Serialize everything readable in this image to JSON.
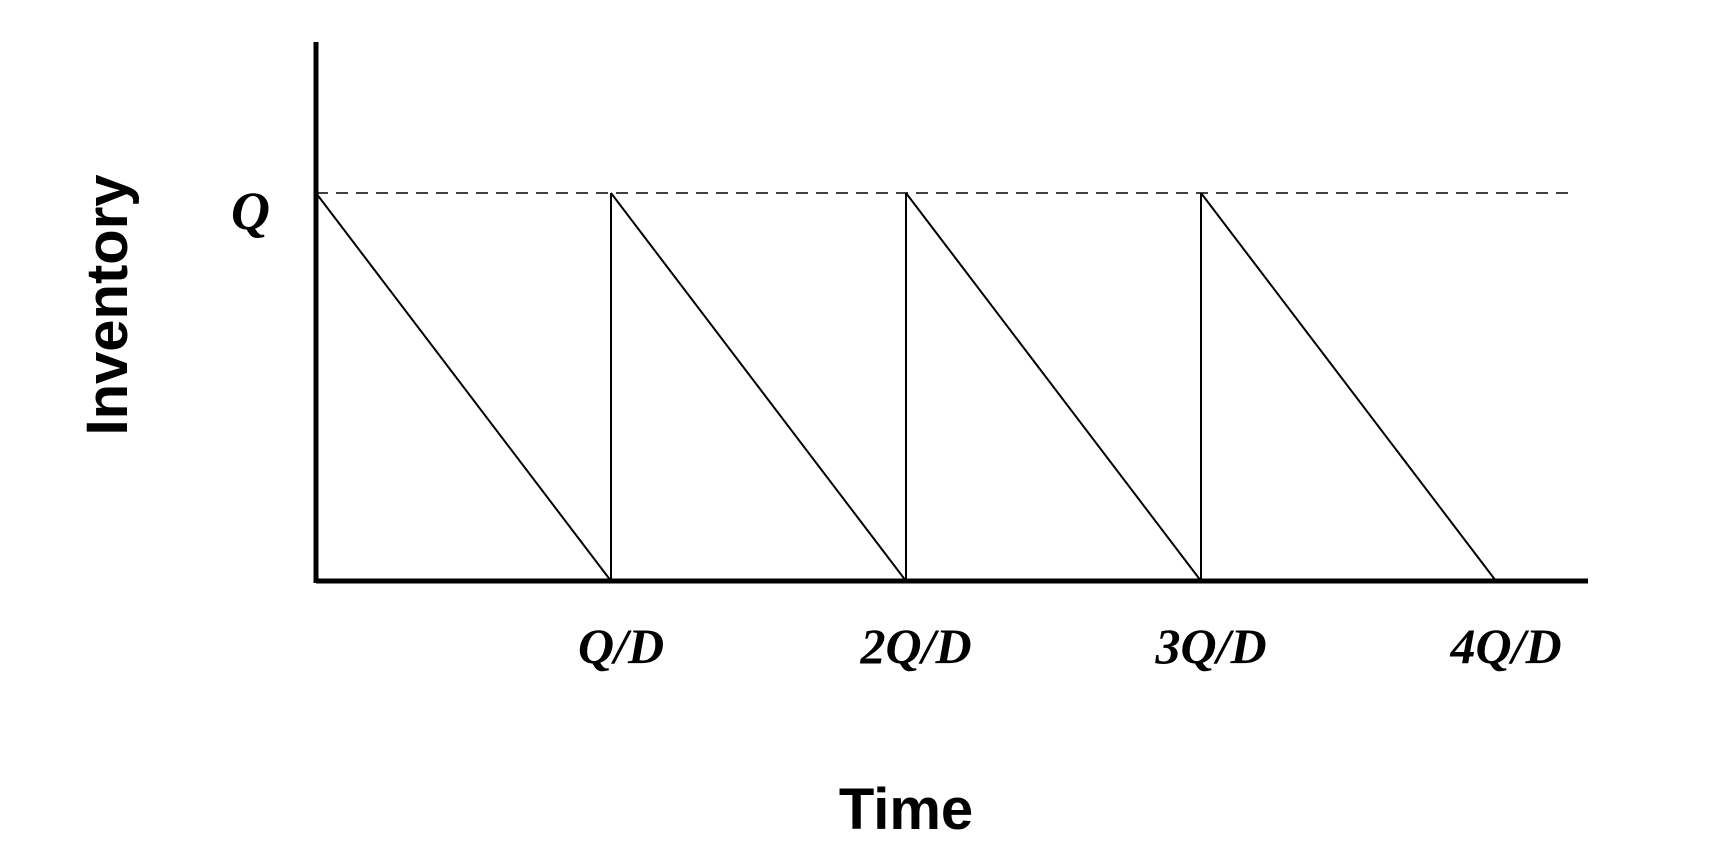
{
  "chart_data": {
    "type": "line",
    "title": "",
    "xlabel": "Time",
    "ylabel": "Inventory",
    "x_ticks": [
      {
        "value": 1,
        "label": "Q/D"
      },
      {
        "value": 2,
        "label": "2Q/D"
      },
      {
        "value": 3,
        "label": "3Q/D"
      },
      {
        "value": 4,
        "label": "4Q/D"
      }
    ],
    "y_ticks": [
      {
        "value": 1,
        "label": "Q"
      }
    ],
    "xlim": [
      0,
      4.3
    ],
    "ylim": [
      0,
      1.39
    ],
    "reference_line": {
      "y": 1,
      "style": "dashed"
    },
    "series": [
      {
        "x": [
          0,
          1,
          1,
          2,
          2,
          3,
          3,
          4
        ],
        "y": [
          1,
          0,
          1,
          0,
          1,
          0,
          1,
          0
        ]
      }
    ],
    "grid": false,
    "legend": "none",
    "colors": {
      "line": "#000000",
      "axis": "#000000"
    }
  }
}
